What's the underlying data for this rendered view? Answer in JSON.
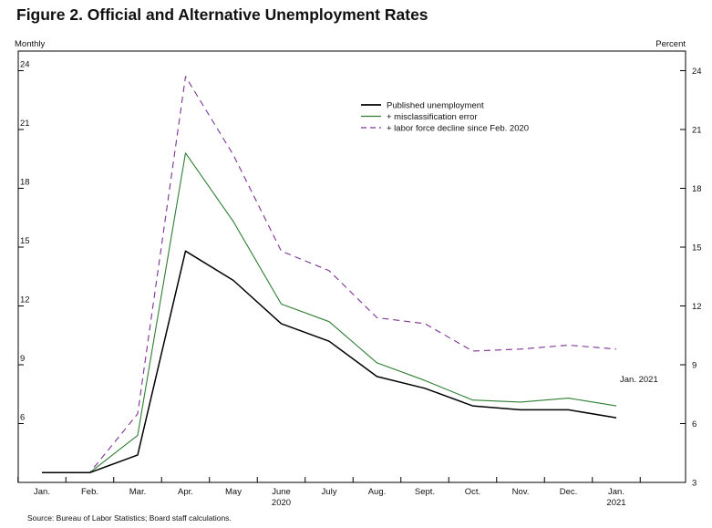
{
  "title": "Figure 2. Official and Alternative Unemployment Rates",
  "source_note": "Source: Bureau of Labor Statistics; Board staff calculations.",
  "chart_data": {
    "type": "line",
    "frequency_label": "Monthly",
    "unit_label": "Percent",
    "x": [
      "Jan.",
      "Feb.",
      "Mar.",
      "Apr.",
      "May",
      "June",
      "July",
      "Aug.",
      "Sept.",
      "Oct.",
      "Nov.",
      "Dec.",
      "Jan."
    ],
    "year_labels": [
      {
        "text": "2020",
        "at": "June"
      },
      {
        "text": "2021",
        "at": "Jan."
      }
    ],
    "ylim": [
      3,
      25
    ],
    "yticks": [
      3,
      6,
      9,
      12,
      15,
      18,
      21,
      24
    ],
    "series": [
      {
        "name": "Published unemployment",
        "color": "#000000",
        "style": "solid",
        "values": [
          3.5,
          3.5,
          4.4,
          14.8,
          13.3,
          11.1,
          10.2,
          8.4,
          7.8,
          6.9,
          6.7,
          6.7,
          6.3
        ]
      },
      {
        "name": "+ misclassification error",
        "color": "#2e7d32",
        "style": "solid",
        "values": [
          3.5,
          3.5,
          5.4,
          19.8,
          16.3,
          12.1,
          11.2,
          9.1,
          8.2,
          7.2,
          7.1,
          7.3,
          6.9
        ]
      },
      {
        "name": "+ labor force decline since Feb. 2020",
        "color": "#7b3294",
        "style": "dashed",
        "values": [
          3.5,
          3.5,
          6.5,
          23.7,
          19.7,
          14.8,
          13.8,
          11.4,
          11.1,
          9.7,
          9.8,
          10.0,
          9.8
        ]
      }
    ],
    "annotation": "Jan. 2021",
    "legend_position": "upper-right"
  }
}
